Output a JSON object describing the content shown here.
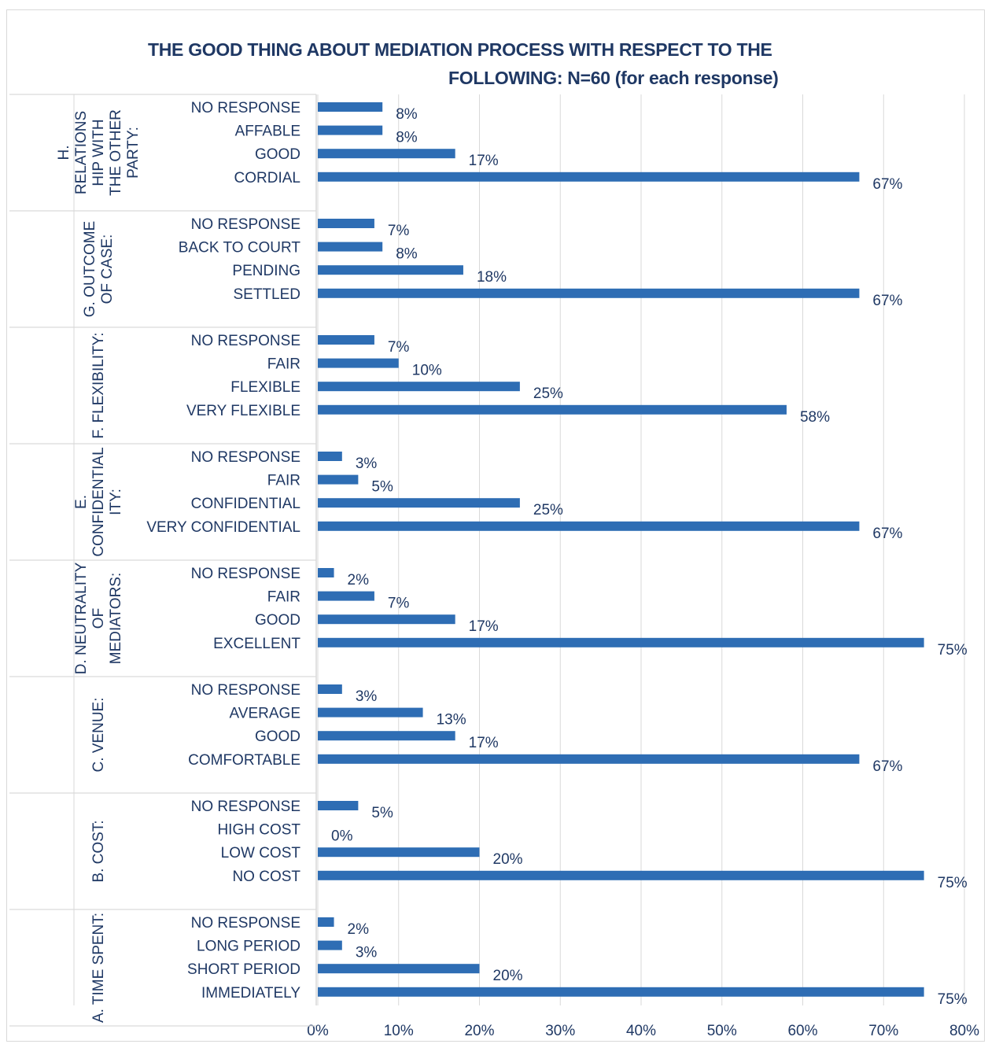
{
  "chart_data": {
    "type": "bar",
    "orientation": "horizontal",
    "title_lines": [
      "THE GOOD THING ABOUT MEDIATION PROCESS WITH RESPECT TO THE",
      "FOLLOWING: N=60 (for each response)"
    ],
    "xlim": [
      0,
      80
    ],
    "x_ticks": [
      "0%",
      "10%",
      "20%",
      "30%",
      "40%",
      "50%",
      "60%",
      "70%",
      "80%"
    ],
    "grid": true,
    "bar_color": "#2e6db4",
    "groups": [
      {
        "label_lines": [
          "H.",
          "RELATIONS",
          "HIP WITH",
          "THE OTHER",
          "PARTY:"
        ],
        "items": [
          {
            "label": "NO RESPONSE",
            "value": 8,
            "value_label": "8%"
          },
          {
            "label": "AFFABLE",
            "value": 8,
            "value_label": "8%"
          },
          {
            "label": "GOOD",
            "value": 17,
            "value_label": "17%"
          },
          {
            "label": "CORDIAL",
            "value": 67,
            "value_label": "67%"
          }
        ]
      },
      {
        "label_lines": [
          "G. OUTCOME",
          "OF CASE:"
        ],
        "items": [
          {
            "label": "NO RESPONSE",
            "value": 7,
            "value_label": "7%"
          },
          {
            "label": "BACK TO COURT",
            "value": 8,
            "value_label": "8%"
          },
          {
            "label": "PENDING",
            "value": 18,
            "value_label": "18%"
          },
          {
            "label": "SETTLED",
            "value": 67,
            "value_label": "67%"
          }
        ]
      },
      {
        "label_lines": [
          "F. FLEXIBILITY:"
        ],
        "items": [
          {
            "label": "NO RESPONSE",
            "value": 7,
            "value_label": "7%"
          },
          {
            "label": "FAIR",
            "value": 10,
            "value_label": "10%"
          },
          {
            "label": "FLEXIBLE",
            "value": 25,
            "value_label": "25%"
          },
          {
            "label": "VERY FLEXIBLE",
            "value": 58,
            "value_label": "58%"
          }
        ]
      },
      {
        "label_lines": [
          "E.",
          "CONFIDENTIAL",
          "ITY:"
        ],
        "items": [
          {
            "label": "NO RESPONSE",
            "value": 3,
            "value_label": "3%"
          },
          {
            "label": "FAIR",
            "value": 5,
            "value_label": "5%"
          },
          {
            "label": "CONFIDENTIAL",
            "value": 25,
            "value_label": "25%"
          },
          {
            "label": "VERY CONFIDENTIAL",
            "value": 67,
            "value_label": "67%"
          }
        ]
      },
      {
        "label_lines": [
          "D. NEUTRALITY",
          "OF",
          "MEDIATORS:"
        ],
        "items": [
          {
            "label": "NO RESPONSE",
            "value": 2,
            "value_label": "2%"
          },
          {
            "label": "FAIR",
            "value": 7,
            "value_label": "7%"
          },
          {
            "label": "GOOD",
            "value": 17,
            "value_label": "17%"
          },
          {
            "label": "EXCELLENT",
            "value": 75,
            "value_label": "75%"
          }
        ]
      },
      {
        "label_lines": [
          "C. VENUE:"
        ],
        "items": [
          {
            "label": "NO RESPONSE",
            "value": 3,
            "value_label": "3%"
          },
          {
            "label": "AVERAGE",
            "value": 13,
            "value_label": "13%"
          },
          {
            "label": "GOOD",
            "value": 17,
            "value_label": "17%"
          },
          {
            "label": "COMFORTABLE",
            "value": 67,
            "value_label": "67%"
          }
        ]
      },
      {
        "label_lines": [
          "B. COST:"
        ],
        "items": [
          {
            "label": "NO RESPONSE",
            "value": 5,
            "value_label": "5%"
          },
          {
            "label": "HIGH COST",
            "value": 0,
            "value_label": "0%"
          },
          {
            "label": "LOW COST",
            "value": 20,
            "value_label": "20%"
          },
          {
            "label": "NO COST",
            "value": 75,
            "value_label": "75%"
          }
        ]
      },
      {
        "label_lines": [
          "A. TIME SPENT:"
        ],
        "items": [
          {
            "label": "NO RESPONSE",
            "value": 2,
            "value_label": "2%"
          },
          {
            "label": "LONG PERIOD",
            "value": 3,
            "value_label": "3%"
          },
          {
            "label": "SHORT PERIOD",
            "value": 20,
            "value_label": "20%"
          },
          {
            "label": "IMMEDIATELY",
            "value": 75,
            "value_label": "75%"
          }
        ]
      }
    ]
  }
}
